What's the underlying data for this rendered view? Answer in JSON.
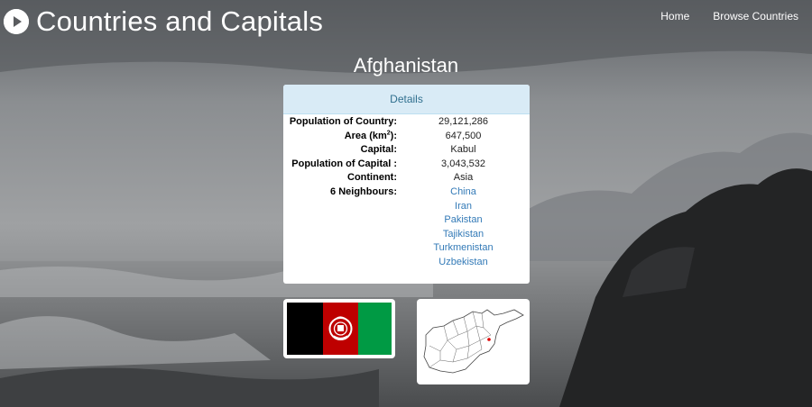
{
  "header": {
    "title": "Countries and Capitals",
    "nav": [
      "Home",
      "Browse Countries"
    ]
  },
  "country": {
    "name": "Afghanistan",
    "panel_heading": "Details",
    "rows": {
      "population_label": "Population of Country:",
      "population_value": "29,121,286",
      "area_label_pre": "Area (km",
      "area_label_sup": "2",
      "area_label_post": "):",
      "area_value": "647,500",
      "capital_label": "Capital:",
      "capital_value": "Kabul",
      "capital_pop_label": "Population of Capital :",
      "capital_pop_value": "3,043,532",
      "continent_label": "Continent:",
      "continent_value": "Asia",
      "neighbours_label": "6 Neighbours:"
    },
    "neighbours": [
      "China",
      "Iran",
      "Pakistan",
      "Tajikistan",
      "Turkmenistan",
      "Uzbekistan"
    ]
  },
  "colors": {
    "link": "#337ab7",
    "heading_bg": "#d9ebf6",
    "heading_text": "#31708f",
    "flag_black": "#000000",
    "flag_red": "#be0000",
    "flag_green": "#009a44"
  },
  "icons": {
    "brand": "play-circle-icon"
  }
}
